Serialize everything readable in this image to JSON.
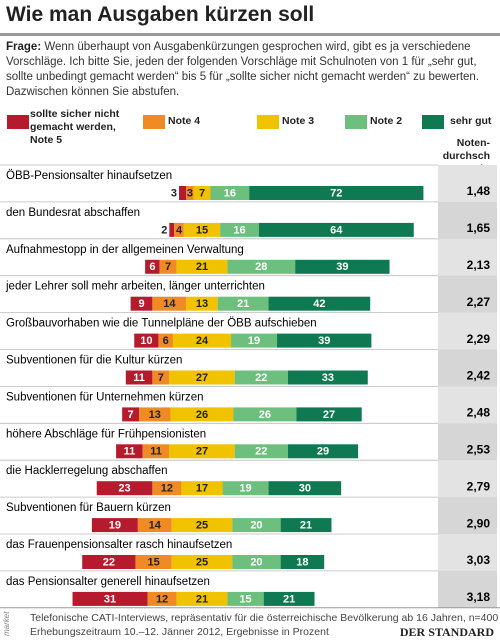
{
  "title": "Wie man Ausgaben kürzen soll",
  "question_label": "Frage:",
  "question": "Wenn überhaupt von Ausgabenkürzungen gesprochen wird, gibt es ja verschiedene Vorschläge. Ich bitte Sie, jeden der folgenden Vorschläge mit Schulnoten von 1 für „sehr gut, sollte unbedingt gemacht werden“ bis 5 für „sollte sicher nicht gemacht werden“ zu bewerten. Dazwischen können Sie abstufen.",
  "chart_data": {
    "type": "stacked-bar",
    "categories": [
      "ÖBB-Pensionsalter hinaufsetzen",
      "den Bundesrat abschaffen",
      "Aufnahmestopp in der allgemeinen Verwaltung",
      "jeder Lehrer soll mehr arbeiten, länger unterrichten",
      "Großbauvorhaben wie die Tunnelpläne der ÖBB aufschieben",
      "Subventionen für die Kultur kürzen",
      "Subventionen für Unternehmen kürzen",
      "höhere Abschläge für Frühpensionisten",
      "die Hacklerregelung abschaffen",
      "Subventionen für Bauern kürzen",
      "das Frauenpensionsalter rasch hinaufsetzen",
      "das Pensionsalter generell hinaufsetzen"
    ],
    "series": [
      {
        "name": "sollte sicher nicht gemacht werden, Note 5",
        "color": "#b51b2c",
        "values": [
          3,
          2,
          6,
          9,
          10,
          11,
          7,
          11,
          23,
          19,
          22,
          31
        ]
      },
      {
        "name": "Note 4",
        "color": "#ef8a24",
        "values": [
          3,
          4,
          7,
          14,
          6,
          7,
          13,
          11,
          12,
          14,
          15,
          12
        ]
      },
      {
        "name": "Note 3",
        "color": "#f0c200",
        "values": [
          7,
          15,
          21,
          13,
          24,
          27,
          26,
          27,
          17,
          25,
          25,
          21
        ]
      },
      {
        "name": "Note 2",
        "color": "#6dbf7d",
        "values": [
          16,
          16,
          28,
          21,
          19,
          22,
          26,
          22,
          19,
          20,
          20,
          15
        ]
      },
      {
        "name": "sehr gut",
        "color": "#0f7a52",
        "values": [
          72,
          64,
          39,
          42,
          39,
          33,
          27,
          29,
          30,
          21,
          18,
          21
        ]
      }
    ],
    "averages": {
      "name": "Noten-durchschnitt",
      "values": [
        1.48,
        1.65,
        2.13,
        2.27,
        2.29,
        2.42,
        2.48,
        2.53,
        2.79,
        2.9,
        3.03,
        3.18
      ],
      "value_labels": [
        "1,48",
        "1,65",
        "2,13",
        "2,27",
        "2,29",
        "2,42",
        "2,48",
        "2,53",
        "2,79",
        "2,90",
        "3,03",
        "3,18"
      ]
    }
  },
  "footer": {
    "source_line1": "Telefonische CATI-Interviews, repräsentativ für die österreichische Bevölkerung ab 16 Jahren, n=400",
    "source_line2": "Erhebungszeitraum 10.–12. Jänner 2012, Ergebnisse in Prozent",
    "institute": "market",
    "publisher": "DER STANDARD"
  }
}
